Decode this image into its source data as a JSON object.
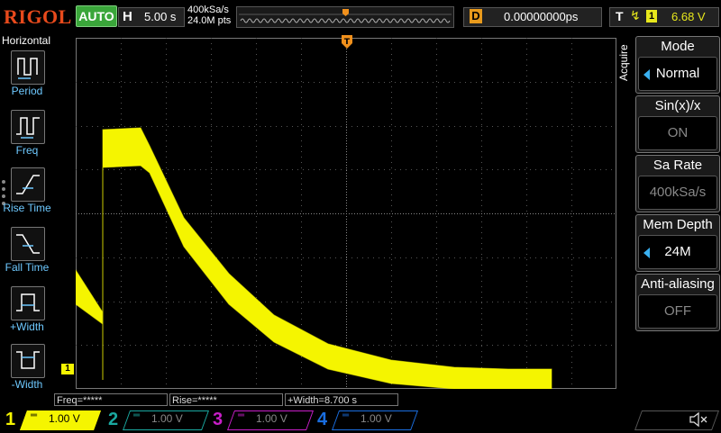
{
  "brand": "RIGOL",
  "top": {
    "run_status": "AUTO",
    "horizontal_label": "H",
    "timebase": "5.00 s",
    "sample_rate": "400kSa/s",
    "points": "24.0M pts",
    "delay_label": "D",
    "delay": "0.00000000ps",
    "trigger_label": "T",
    "trigger_channel": "1",
    "trigger_level": "6.68 V"
  },
  "left_panel": {
    "title": "Horizontal",
    "items": [
      {
        "label": "Period",
        "icon": "period-icon"
      },
      {
        "label": "Freq",
        "icon": "freq-icon"
      },
      {
        "label": "Rise Time",
        "icon": "rise-time-icon"
      },
      {
        "label": "Fall Time",
        "icon": "fall-time-icon"
      },
      {
        "label": "+Width",
        "icon": "positive-width-icon"
      },
      {
        "label": "-Width",
        "icon": "negative-width-icon"
      }
    ]
  },
  "right_panel": {
    "menu_title": "Acquire",
    "items": [
      {
        "label": "Mode",
        "value": "Normal",
        "active": true
      },
      {
        "label": "Sin(x)/x",
        "value": "ON",
        "active": false
      },
      {
        "label": "Sa Rate",
        "value": "400kSa/s",
        "active": false
      },
      {
        "label": "Mem Depth",
        "value": "24M",
        "active": true
      },
      {
        "label": "Anti-aliasing",
        "value": "OFF",
        "active": false
      }
    ]
  },
  "measurements": {
    "freq": "Freq=*****",
    "rise": "Rise=*****",
    "width": "+Width=8.700 s"
  },
  "channel_marker": "1",
  "channels": [
    {
      "num": "1",
      "scale": "1.00 V",
      "color": "#f5f500"
    },
    {
      "num": "2",
      "scale": "1.00 V",
      "color": "#1aa8a0"
    },
    {
      "num": "3",
      "scale": "1.00 V",
      "color": "#c81ec8"
    },
    {
      "num": "4",
      "scale": "1.00 V",
      "color": "#1a6ee0"
    }
  ],
  "colors": {
    "trace": "#f5f500",
    "trigger_marker": "#f0901c",
    "menu_accent": "#3ab0f0"
  }
}
